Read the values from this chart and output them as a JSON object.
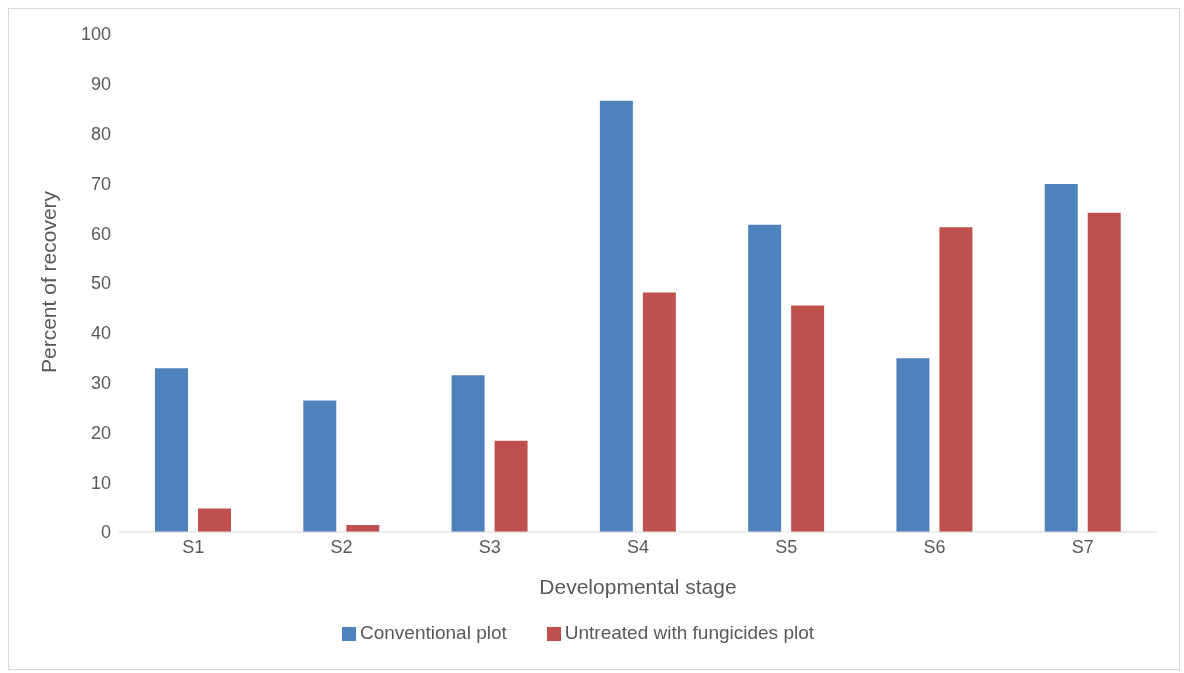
{
  "chart_data": {
    "type": "bar",
    "xlabel": "Developmental stage",
    "ylabel": "Percent of recovery",
    "categories": [
      "S1",
      "S2",
      "S3",
      "S4",
      "S5",
      "S6",
      "S7"
    ],
    "series": [
      {
        "name": "Conventional plot",
        "color": "#4f81bd",
        "values": [
          32.9,
          26.4,
          31.5,
          86.6,
          61.7,
          34.9,
          69.9
        ]
      },
      {
        "name": "Untreated with fungicides plot",
        "color": "#c0504d",
        "values": [
          4.7,
          1.4,
          18.3,
          48.1,
          45.5,
          61.2,
          64.1
        ]
      }
    ],
    "ylim": [
      0,
      100
    ],
    "yticks": [
      0,
      10,
      20,
      30,
      40,
      50,
      60,
      70,
      80,
      90,
      100
    ],
    "grid": false,
    "legend": "bottom"
  }
}
